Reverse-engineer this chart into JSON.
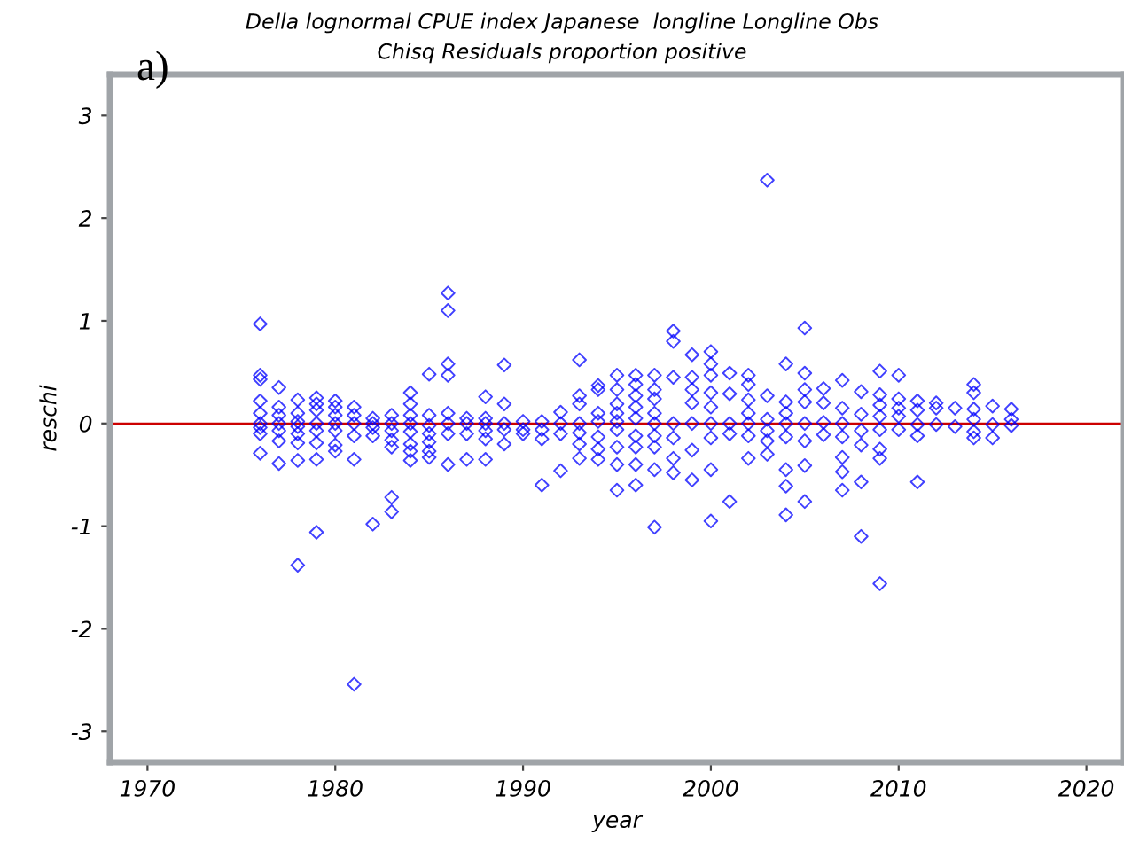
{
  "chart_data": {
    "type": "scatter",
    "title": "Della lognormal CPUE index Japanese  longline Longline Obs",
    "subtitle": "Chisq Residuals proportion positive",
    "xlabel": "year",
    "ylabel": "reschi",
    "annotations": [
      "a)"
    ],
    "xlim": [
      1968,
      2022
    ],
    "ylim": [
      -3.3,
      3.4
    ],
    "xticks": [
      1970,
      1980,
      1990,
      2000,
      2010,
      2020
    ],
    "yticks": [
      -3,
      -2,
      -1,
      0,
      1,
      2,
      3
    ],
    "grid": false,
    "legend": false,
    "marker": "diamond",
    "ref_lines": [
      {
        "axis": "y",
        "value": 0,
        "color": "#cc0000"
      }
    ],
    "series": [
      {
        "color": "#0000ff",
        "x": [
          1976,
          1976,
          1976,
          1976,
          1976,
          1976,
          1976,
          1976,
          1976,
          1977,
          1977,
          1977,
          1977,
          1977,
          1977,
          1977,
          1978,
          1978,
          1978,
          1978,
          1978,
          1978,
          1978,
          1978,
          1979,
          1979,
          1979,
          1979,
          1979,
          1979,
          1979,
          1979,
          1980,
          1980,
          1980,
          1980,
          1980,
          1980,
          1980,
          1981,
          1981,
          1981,
          1981,
          1981,
          1981,
          1982,
          1982,
          1982,
          1982,
          1982,
          1983,
          1983,
          1983,
          1983,
          1983,
          1983,
          1983,
          1984,
          1984,
          1984,
          1984,
          1984,
          1984,
          1984,
          1984,
          1985,
          1985,
          1985,
          1985,
          1985,
          1985,
          1985,
          1986,
          1986,
          1986,
          1986,
          1986,
          1986,
          1986,
          1986,
          1987,
          1987,
          1987,
          1987,
          1988,
          1988,
          1988,
          1988,
          1988,
          1988,
          1989,
          1989,
          1989,
          1989,
          1989,
          1990,
          1990,
          1990,
          1991,
          1991,
          1991,
          1991,
          1992,
          1992,
          1992,
          1992,
          1993,
          1993,
          1993,
          1993,
          1993,
          1993,
          1993,
          1994,
          1994,
          1994,
          1994,
          1994,
          1994,
          1994,
          1995,
          1995,
          1995,
          1995,
          1995,
          1995,
          1995,
          1995,
          1995,
          1996,
          1996,
          1996,
          1996,
          1996,
          1996,
          1996,
          1996,
          1996,
          1997,
          1997,
          1997,
          1997,
          1997,
          1997,
          1997,
          1997,
          1997,
          1998,
          1998,
          1998,
          1998,
          1998,
          1998,
          1998,
          1999,
          1999,
          1999,
          1999,
          1999,
          1999,
          1999,
          2000,
          2000,
          2000,
          2000,
          2000,
          2000,
          2000,
          2000,
          2000,
          2001,
          2001,
          2001,
          2001,
          2001,
          2002,
          2002,
          2002,
          2002,
          2002,
          2002,
          2002,
          2003,
          2003,
          2003,
          2003,
          2003,
          2003,
          2004,
          2004,
          2004,
          2004,
          2004,
          2004,
          2004,
          2004,
          2005,
          2005,
          2005,
          2005,
          2005,
          2005,
          2005,
          2005,
          2006,
          2006,
          2006,
          2006,
          2007,
          2007,
          2007,
          2007,
          2007,
          2007,
          2007,
          2008,
          2008,
          2008,
          2008,
          2008,
          2008,
          2009,
          2009,
          2009,
          2009,
          2009,
          2009,
          2009,
          2009,
          2010,
          2010,
          2010,
          2010,
          2010,
          2011,
          2011,
          2011,
          2011,
          2011,
          2012,
          2012,
          2012,
          2013,
          2013,
          2014,
          2014,
          2014,
          2014,
          2014,
          2014,
          2015,
          2015,
          2015,
          2016,
          2016,
          2016
        ],
        "values": [
          0.97,
          0.47,
          0.43,
          0.22,
          0.1,
          0,
          -0.04,
          -0.1,
          -0.29,
          0.35,
          0.16,
          0.08,
          0,
          -0.07,
          -0.17,
          -0.39,
          0.23,
          0.1,
          0.02,
          -0.03,
          -0.1,
          -0.19,
          -0.36,
          -1.38,
          0.25,
          0.19,
          0.13,
          0,
          -0.07,
          -0.19,
          -0.35,
          -1.06,
          0.22,
          0.16,
          0.08,
          0,
          -0.07,
          -0.21,
          -0.27,
          0.16,
          0.08,
          0,
          -0.12,
          -0.35,
          -2.54,
          0.05,
          0,
          -0.04,
          -0.12,
          -0.98,
          0.08,
          0,
          -0.07,
          -0.16,
          -0.23,
          -0.72,
          -0.86,
          0.3,
          0.19,
          0.08,
          0,
          -0.08,
          -0.2,
          -0.27,
          -0.36,
          0.48,
          0.08,
          -0.02,
          -0.1,
          -0.18,
          -0.27,
          -0.33,
          1.27,
          1.1,
          0.58,
          0.47,
          0.1,
          0,
          -0.1,
          -0.4,
          0.05,
          0,
          -0.1,
          -0.35,
          0.26,
          0.05,
          0,
          -0.07,
          -0.15,
          -0.35,
          0.57,
          0.19,
          0,
          -0.06,
          -0.2,
          0.02,
          -0.06,
          -0.1,
          0.02,
          -0.06,
          -0.15,
          -0.6,
          0.11,
          0,
          -0.1,
          -0.46,
          0.62,
          0.27,
          0.19,
          0,
          -0.09,
          -0.2,
          -0.34,
          0.37,
          0.33,
          0.1,
          0.02,
          -0.13,
          -0.25,
          -0.35,
          0.47,
          0.33,
          0.19,
          0.1,
          0.02,
          -0.06,
          -0.23,
          -0.4,
          -0.65,
          0.47,
          0.38,
          0.27,
          0.16,
          0.05,
          -0.12,
          -0.23,
          -0.4,
          -0.6,
          0.47,
          0.33,
          0.24,
          0.1,
          0,
          -0.12,
          -0.23,
          -0.45,
          -1.01,
          0.9,
          0.8,
          0.45,
          0,
          -0.14,
          -0.34,
          -0.48,
          0.67,
          0.45,
          0.33,
          0.2,
          0,
          -0.26,
          -0.55,
          0.7,
          0.58,
          0.47,
          0.3,
          0.16,
          0,
          -0.14,
          -0.45,
          -0.95,
          0.49,
          0.29,
          0,
          -0.1,
          -0.76,
          0.47,
          0.38,
          0.23,
          0.1,
          0,
          -0.12,
          -0.34,
          2.37,
          0.27,
          0.04,
          -0.07,
          -0.17,
          -0.3,
          0.58,
          0.21,
          0.1,
          0,
          -0.13,
          -0.45,
          -0.61,
          -0.89,
          0.93,
          0.49,
          0.33,
          0.21,
          0,
          -0.17,
          -0.41,
          -0.76,
          0.34,
          0.2,
          0.01,
          -0.11,
          0.42,
          0.15,
          0,
          -0.13,
          -0.33,
          -0.47,
          -0.65,
          0.31,
          0.09,
          -0.07,
          -0.21,
          -0.57,
          -1.1,
          0.51,
          0.28,
          0.18,
          0.07,
          -0.06,
          -0.25,
          -0.34,
          -1.56,
          0.47,
          0.24,
          0.15,
          0.07,
          -0.06,
          0.22,
          0.13,
          -0.01,
          -0.12,
          -0.57,
          0.2,
          0.15,
          -0.01,
          0.15,
          -0.03,
          0.38,
          0.3,
          0.14,
          0.04,
          -0.08,
          -0.14,
          0.17,
          -0.01,
          -0.14,
          0.14,
          0.04,
          -0.02
        ]
      }
    ]
  }
}
